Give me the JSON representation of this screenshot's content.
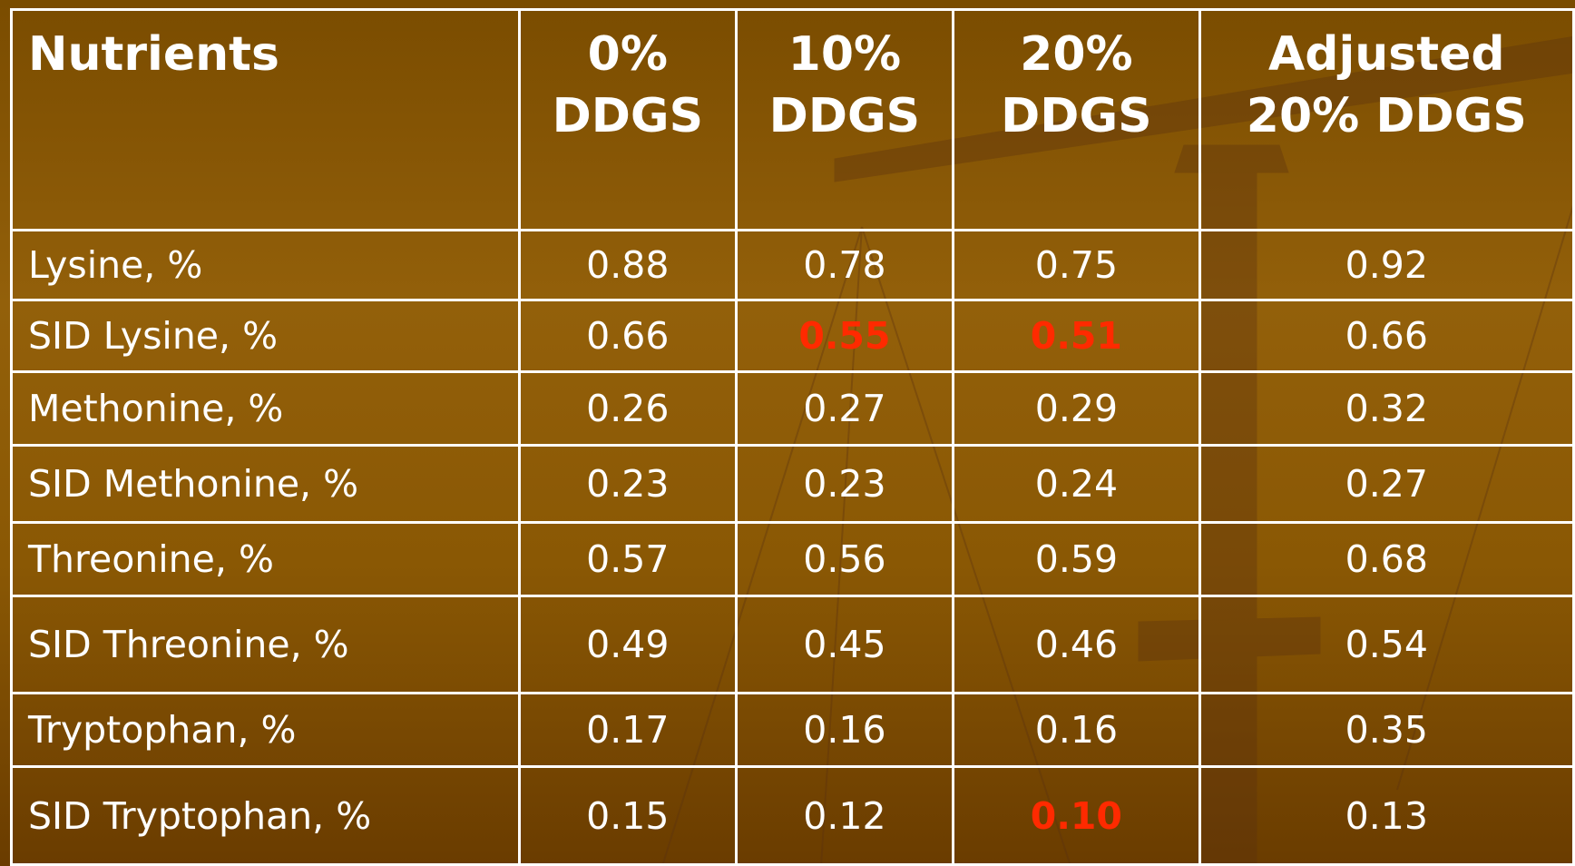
{
  "table": {
    "header": [
      [
        "Nutrients"
      ],
      [
        "0%",
        "DDGS"
      ],
      [
        "10%",
        "DDGS"
      ],
      [
        "20%",
        "DDGS"
      ],
      [
        "Adjusted",
        "20% DDGS"
      ]
    ],
    "rows": [
      [
        "Lysine, %",
        "0.88",
        "0.78",
        "0.75",
        "0.92"
      ],
      [
        "SID Lysine, %",
        "0.66",
        "0.55",
        "0.51",
        "0.66"
      ],
      [
        "Methonine, %",
        "0.26",
        "0.27",
        "0.29",
        "0.32"
      ],
      [
        "SID Methonine, %",
        "0.23",
        "0.23",
        "0.24",
        "0.27"
      ],
      [
        "Threonine, %",
        "0.57",
        "0.56",
        "0.59",
        "0.68"
      ],
      [
        "SID Threonine, %",
        "0.49",
        "0.45",
        "0.46",
        "0.54"
      ],
      [
        "Tryptophan, %",
        "0.17",
        "0.16",
        "0.16",
        "0.35"
      ],
      [
        "SID Tryptophan, %",
        "0.15",
        "0.12",
        "0.10",
        "0.13"
      ]
    ],
    "highlighted": [
      [
        1,
        2
      ],
      [
        1,
        3
      ],
      [
        7,
        3
      ]
    ],
    "highlight_color": "#ff2a00"
  }
}
